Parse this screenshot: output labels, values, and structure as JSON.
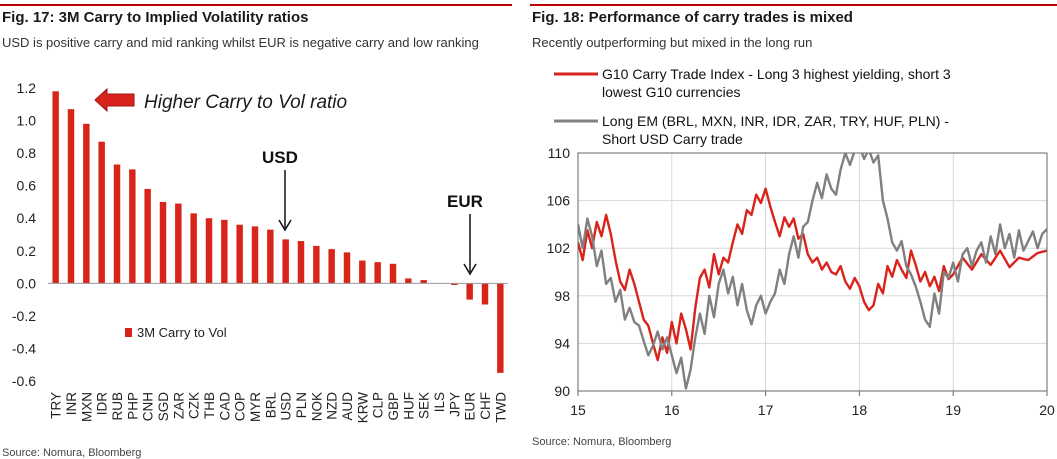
{
  "fig17": {
    "title": "Fig. 17: 3M Carry to Implied Volatility ratios",
    "subtitle": "USD is positive carry and mid ranking whilst EUR is negative carry and low ranking",
    "source": "Source: Nomura, Bloomberg",
    "arrow_label": "Higher Carry to Vol ratio",
    "usd_label": "USD",
    "eur_label": "EUR"
  },
  "fig18": {
    "title": "Fig. 18: Performance of carry trades is mixed",
    "subtitle": "Recently outperforming but mixed in the long run",
    "source": "Source: Nomura, Bloomberg"
  },
  "colors": {
    "accent_red": "#d9241c",
    "series_gray": "#808080",
    "rule_red": "#c00000"
  },
  "chart_data": [
    {
      "type": "bar",
      "title": "3M Carry to Implied Volatility ratios",
      "categories": [
        "TRY",
        "INR",
        "MXN",
        "IDR",
        "RUB",
        "PHP",
        "CNH",
        "SGD",
        "ZAR",
        "CZK",
        "THB",
        "CAD",
        "COP",
        "MYR",
        "BRL",
        "USD",
        "PLN",
        "NOK",
        "NZD",
        "AUD",
        "KRW",
        "CLP",
        "GBP",
        "HUF",
        "SEK",
        "ILS",
        "JPY",
        "EUR",
        "CHF",
        "TWD"
      ],
      "series": [
        {
          "name": "3M Carry to Vol",
          "values": [
            1.18,
            1.07,
            0.98,
            0.87,
            0.73,
            0.7,
            0.58,
            0.5,
            0.49,
            0.43,
            0.4,
            0.39,
            0.36,
            0.35,
            0.33,
            0.27,
            0.26,
            0.23,
            0.21,
            0.19,
            0.14,
            0.13,
            0.12,
            0.03,
            0.02,
            0.0,
            -0.01,
            -0.1,
            -0.13,
            -0.55
          ]
        }
      ],
      "yticks": [
        "1.2",
        "1.0",
        "0.8",
        "0.6",
        "0.4",
        "0.2",
        "0.0",
        "-0.2",
        "-0.4",
        "-0.6"
      ],
      "ylim": [
        -0.6,
        1.2
      ],
      "legend": "3M Carry to Vol",
      "legend_position": "lower-left"
    },
    {
      "type": "line",
      "title": "Performance of carry trades is mixed",
      "xticks": [
        "15",
        "16",
        "17",
        "18",
        "19",
        "20"
      ],
      "yticks": [
        "110",
        "106",
        "102",
        "98",
        "94",
        "90"
      ],
      "ylim": [
        90,
        110
      ],
      "xlim": [
        2015.0,
        2020.0
      ],
      "legend_position": "top",
      "series": [
        {
          "name": "G10 Carry Trade Index - Long 3 highest yielding, short 3 lowest G10 currencies",
          "color": "#d9241c",
          "x": [
            2015.0,
            2015.05,
            2015.1,
            2015.15,
            2015.2,
            2015.25,
            2015.3,
            2015.35,
            2015.4,
            2015.45,
            2015.5,
            2015.55,
            2015.6,
            2015.65,
            2015.7,
            2015.75,
            2015.8,
            2015.85,
            2015.9,
            2015.95,
            2016.0,
            2016.05,
            2016.1,
            2016.15,
            2016.2,
            2016.25,
            2016.3,
            2016.35,
            2016.4,
            2016.45,
            2016.5,
            2016.55,
            2016.6,
            2016.65,
            2016.7,
            2016.75,
            2016.8,
            2016.85,
            2016.9,
            2016.95,
            2017.0,
            2017.05,
            2017.1,
            2017.15,
            2017.2,
            2017.25,
            2017.3,
            2017.35,
            2017.4,
            2017.45,
            2017.5,
            2017.55,
            2017.6,
            2017.65,
            2017.7,
            2017.75,
            2017.8,
            2017.85,
            2017.9,
            2017.95,
            2018.0,
            2018.05,
            2018.1,
            2018.15,
            2018.2,
            2018.25,
            2018.3,
            2018.35,
            2018.4,
            2018.45,
            2018.5,
            2018.55,
            2018.6,
            2018.65,
            2018.7,
            2018.75,
            2018.8,
            2018.85,
            2018.9,
            2018.95,
            2019.0,
            2019.1,
            2019.2,
            2019.3,
            2019.4,
            2019.5,
            2019.6,
            2019.7,
            2019.8,
            2019.9,
            2020.0
          ],
          "y": [
            102.5,
            101.0,
            103.5,
            102.0,
            104.2,
            103.0,
            104.8,
            103.2,
            101.0,
            99.2,
            98.5,
            100.2,
            99.0,
            97.5,
            96.0,
            95.5,
            94.0,
            92.6,
            94.5,
            93.2,
            95.8,
            94.0,
            96.5,
            95.2,
            93.5,
            97.0,
            99.5,
            100.2,
            98.7,
            101.5,
            99.8,
            101.2,
            100.8,
            102.5,
            104.0,
            103.2,
            105.2,
            104.8,
            106.5,
            105.8,
            107.0,
            105.5,
            104.2,
            103.0,
            104.6,
            103.8,
            104.5,
            102.8,
            103.2,
            101.5,
            100.8,
            101.2,
            100.2,
            100.8,
            100.0,
            99.8,
            100.5,
            99.2,
            98.6,
            99.5,
            98.8,
            97.5,
            96.8,
            97.2,
            99.0,
            98.2,
            100.5,
            99.6,
            101.0,
            100.2,
            99.5,
            101.8,
            100.6,
            99.2,
            100.0,
            98.8,
            99.6,
            98.4,
            100.5,
            99.4,
            99.8,
            101.2,
            100.2,
            101.5,
            100.6,
            101.8,
            100.4,
            101.2,
            101.0,
            101.6,
            101.8
          ]
        },
        {
          "name": "Long EM (BRL, MXN, INR, IDR, ZAR, TRY, HUF, PLN) - Short USD Carry trade",
          "color": "#808080",
          "x": [
            2015.0,
            2015.05,
            2015.1,
            2015.15,
            2015.2,
            2015.25,
            2015.3,
            2015.35,
            2015.4,
            2015.45,
            2015.5,
            2015.55,
            2015.6,
            2015.65,
            2015.7,
            2015.75,
            2015.8,
            2015.85,
            2015.9,
            2015.95,
            2016.0,
            2016.05,
            2016.1,
            2016.15,
            2016.2,
            2016.25,
            2016.3,
            2016.35,
            2016.4,
            2016.45,
            2016.5,
            2016.55,
            2016.6,
            2016.65,
            2016.7,
            2016.75,
            2016.8,
            2016.85,
            2016.9,
            2016.95,
            2017.0,
            2017.05,
            2017.1,
            2017.15,
            2017.2,
            2017.25,
            2017.3,
            2017.35,
            2017.4,
            2017.45,
            2017.5,
            2017.55,
            2017.6,
            2017.65,
            2017.7,
            2017.75,
            2017.8,
            2017.85,
            2017.9,
            2017.95,
            2018.0,
            2018.05,
            2018.1,
            2018.15,
            2018.2,
            2018.25,
            2018.3,
            2018.35,
            2018.4,
            2018.45,
            2018.5,
            2018.55,
            2018.6,
            2018.65,
            2018.7,
            2018.75,
            2018.8,
            2018.85,
            2018.9,
            2018.95,
            2019.0,
            2019.05,
            2019.1,
            2019.15,
            2019.2,
            2019.25,
            2019.3,
            2019.35,
            2019.4,
            2019.45,
            2019.5,
            2019.55,
            2019.6,
            2019.65,
            2019.7,
            2019.75,
            2019.8,
            2019.85,
            2019.9,
            2019.95,
            2020.0
          ],
          "y": [
            104.0,
            102.0,
            104.5,
            103.0,
            100.5,
            101.8,
            99.0,
            99.5,
            97.5,
            98.5,
            96.0,
            97.0,
            95.8,
            95.5,
            94.2,
            93.0,
            93.8,
            95.0,
            93.5,
            94.5,
            93.0,
            91.5,
            92.8,
            90.2,
            91.8,
            94.5,
            96.5,
            94.8,
            98.0,
            96.2,
            99.0,
            100.2,
            98.2,
            99.6,
            97.2,
            99.0,
            96.8,
            95.6,
            97.2,
            98.0,
            96.5,
            97.5,
            98.2,
            100.2,
            99.0,
            101.5,
            103.0,
            101.2,
            103.8,
            104.2,
            106.0,
            107.5,
            106.2,
            108.2,
            107.0,
            106.5,
            108.6,
            110.0,
            109.0,
            110.2,
            110.6,
            109.5,
            110.3,
            109.2,
            109.8,
            106.0,
            104.5,
            102.5,
            101.8,
            102.6,
            100.5,
            99.8,
            98.8,
            97.5,
            96.0,
            95.4,
            98.2,
            96.5,
            100.0,
            99.5,
            100.8,
            99.2,
            101.5,
            102.0,
            100.5,
            101.8,
            102.5,
            100.8,
            103.0,
            101.5,
            104.0,
            102.0,
            103.2,
            101.2,
            103.5,
            101.8,
            102.6,
            103.4,
            102.0,
            103.2,
            103.6
          ]
        }
      ]
    }
  ]
}
